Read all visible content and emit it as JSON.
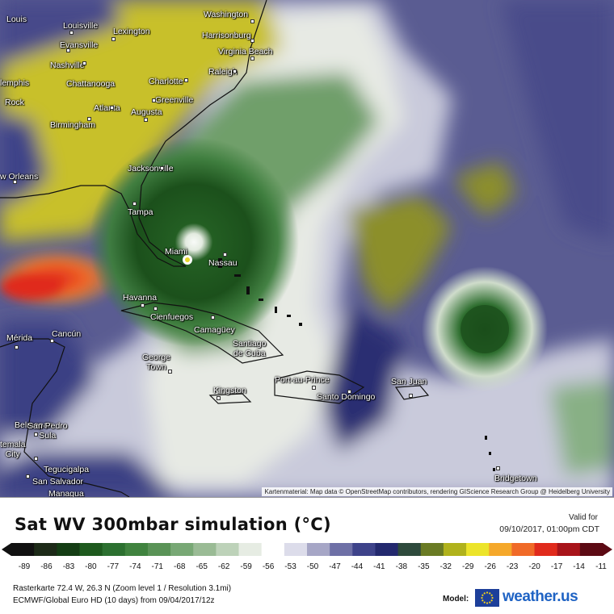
{
  "title": "Sat WV 300mbar simulation (°C)",
  "valid_label": "Valid for",
  "valid_time": "09/10/2017, 01:00pm CDT",
  "colorbar": {
    "ticks": [
      "-89",
      "-86",
      "-83",
      "-80",
      "-77",
      "-74",
      "-71",
      "-68",
      "-65",
      "-62",
      "-59",
      "-56",
      "-53",
      "-50",
      "-47",
      "-44",
      "-41",
      "-38",
      "-35",
      "-32",
      "-29",
      "-26",
      "-23",
      "-20",
      "-17",
      "-14",
      "-11"
    ],
    "stops": [
      "#111111",
      "#1d2a18",
      "#143d14",
      "#1e5a1e",
      "#2c7030",
      "#40833f",
      "#5a9357",
      "#78a875",
      "#9abb95",
      "#bdd2b9",
      "#e6ece3",
      "#ffffff",
      "#dcdcea",
      "#a6a6c6",
      "#6e70a6",
      "#3e438a",
      "#23296e",
      "#2e4a3c",
      "#6a7b24",
      "#b0b21c",
      "#ece42a",
      "#f5a82a",
      "#f06a28",
      "#e02a1c",
      "#a8141a",
      "#5c0a14"
    ]
  },
  "info_line1": "Rasterkarte 72.4 W, 26.3 N (Zoom level 1 / Resolution 3.1mi)",
  "info_line2": "ECMWF/Global Euro HD (10 days) from 09/04/2017/12z",
  "model_label": "Model:",
  "brand": "weather.us",
  "attribution": "Kartenmaterial: Map data © OpenStreetMap contributors, rendering GIScience Research Group @ Heidelberg University",
  "cities": [
    {
      "name": "Louis"
    },
    {
      "name": "Washington"
    },
    {
      "name": "Louisville"
    },
    {
      "name": "Lexington"
    },
    {
      "name": "Harrisonburg"
    },
    {
      "name": "Evansville"
    },
    {
      "name": "Virginia Beach"
    },
    {
      "name": "Nashville"
    },
    {
      "name": "lemphis"
    },
    {
      "name": "Raleigh"
    },
    {
      "name": "Chattanooga"
    },
    {
      "name": "Charlotte"
    },
    {
      "name": "Rock"
    },
    {
      "name": "Greenville"
    },
    {
      "name": "Atlanta"
    },
    {
      "name": "Augusta"
    },
    {
      "name": "Birmingham"
    },
    {
      "name": "Jacksonville"
    },
    {
      "name": "w Orleans"
    },
    {
      "name": "Tampa"
    },
    {
      "name": "Miami"
    },
    {
      "name": "Nassau"
    },
    {
      "name": "Havanna"
    },
    {
      "name": "Cienfuegos"
    },
    {
      "name": "Camagüey"
    },
    {
      "name": "Santiago de Cuba"
    },
    {
      "name": "Mérida"
    },
    {
      "name": "Cancún"
    },
    {
      "name": "George Town"
    },
    {
      "name": "Port-au-Prince"
    },
    {
      "name": "San Juan"
    },
    {
      "name": "Santo Domingo"
    },
    {
      "name": "Kingston"
    },
    {
      "name": "Belmopan"
    },
    {
      "name": "San Pedro Sula"
    },
    {
      "name": "temala City"
    },
    {
      "name": "Tegucigalpa"
    },
    {
      "name": "San Salvador"
    },
    {
      "name": "Managua"
    },
    {
      "name": "Bridgetown"
    }
  ]
}
